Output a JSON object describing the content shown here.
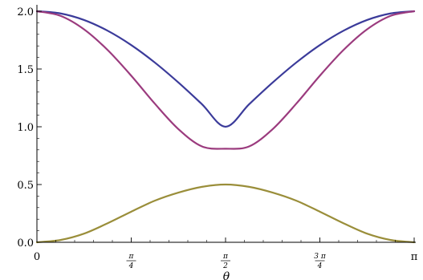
{
  "chart_data": {
    "type": "line",
    "title": "",
    "xlabel": "θ",
    "ylabel": "",
    "xlim": [
      0,
      3.14159265
    ],
    "ylim": [
      0,
      2.0
    ],
    "grid": false,
    "legend": "none",
    "x_ticks": [
      {
        "value": 0,
        "label": "0",
        "num": "",
        "den": ""
      },
      {
        "value": 0.78539816,
        "label": "",
        "num": "π",
        "den": "4"
      },
      {
        "value": 1.57079633,
        "label": "",
        "num": "π",
        "den": "2"
      },
      {
        "value": 2.35619449,
        "label": "",
        "num": "3 π",
        "den": "4"
      },
      {
        "value": 3.14159265,
        "label": "π",
        "num": "",
        "den": ""
      }
    ],
    "y_ticks": [
      {
        "value": 0.0,
        "label": "0.0"
      },
      {
        "value": 0.5,
        "label": "0.5"
      },
      {
        "value": 1.0,
        "label": "1.0"
      },
      {
        "value": 1.5,
        "label": "1.5"
      },
      {
        "value": 2.0,
        "label": "2.0"
      }
    ],
    "x": [
      0,
      0.19635,
      0.3927,
      0.58905,
      0.7854,
      0.98175,
      1.1781,
      1.37445,
      1.5708,
      1.76715,
      1.9635,
      2.15984,
      2.35619,
      2.55254,
      2.74889,
      2.94524,
      3.14159
    ],
    "series": [
      {
        "color": "#3b3b9a",
        "values": [
          2.0,
          1.981,
          1.924,
          1.831,
          1.707,
          1.556,
          1.383,
          1.195,
          1.0,
          1.195,
          1.383,
          1.556,
          1.707,
          1.831,
          1.924,
          1.981,
          2.0
        ]
      },
      {
        "color": "#9b3b7e",
        "values": [
          2.0,
          1.96,
          1.843,
          1.664,
          1.442,
          1.2,
          0.98,
          0.83,
          0.81,
          0.83,
          0.98,
          1.2,
          1.442,
          1.664,
          1.843,
          1.96,
          2.0
        ]
      },
      {
        "color": "#9a8e3a",
        "values": [
          0.0,
          0.02,
          0.075,
          0.165,
          0.265,
          0.36,
          0.43,
          0.48,
          0.5,
          0.48,
          0.43,
          0.36,
          0.265,
          0.165,
          0.075,
          0.02,
          0.0
        ]
      }
    ]
  }
}
